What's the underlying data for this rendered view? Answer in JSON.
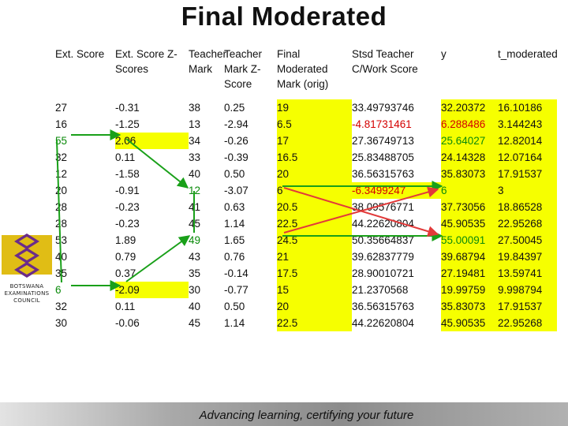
{
  "title": "Final Moderated",
  "footer": "Advancing learning, certifying your future",
  "logo": {
    "lines": [
      "BOTSWANA",
      "EXAMINATIONS",
      "COUNCIL"
    ]
  },
  "colors": {
    "highlight": "#f6ff00",
    "red": "#d40000",
    "green": "#0a8a0a",
    "logo_gold": "#e0bd15",
    "logo_purple": "#6b2c8a"
  },
  "headers": [
    "Ext. Score",
    "Ext. Score Z-Scores",
    "Teacher Mark",
    "Teacher Mark Z-Score",
    "Final Moderated Mark (orig)",
    "Stsd Teacher C/Work Score",
    "y",
    "t_moderated"
  ],
  "rows": [
    [
      "27",
      "-0.31",
      "38",
      "0.25",
      "19",
      "33.49793746",
      "32.20372",
      "16.10186"
    ],
    [
      "16",
      "-1.25",
      "13",
      "-2.94",
      "6.5",
      "-4.81731461",
      "6.288486",
      "3.144243"
    ],
    [
      "55",
      "2.06",
      "34",
      "-0.26",
      "17",
      "27.36749713",
      "25.64027",
      "12.82014"
    ],
    [
      "32",
      "0.11",
      "33",
      "-0.39",
      "16.5",
      "25.83488705",
      "24.14328",
      "12.07164"
    ],
    [
      "12",
      "-1.58",
      "40",
      "0.50",
      "20",
      "36.56315763",
      "35.83073",
      "17.91537"
    ],
    [
      "20",
      "-0.91",
      "12",
      "-3.07",
      "6",
      "-6.3499247",
      "6",
      "3"
    ],
    [
      "28",
      "-0.23",
      "41",
      "0.63",
      "20.5",
      "38.09576771",
      "37.73056",
      "18.86528"
    ],
    [
      "28",
      "-0.23",
      "45",
      "1.14",
      "22.5",
      "44.22620804",
      "45.90535",
      "22.95268"
    ],
    [
      "53",
      "1.89",
      "49",
      "1.65",
      "24.5",
      "50.35664837",
      "55.00091",
      "27.50045"
    ],
    [
      "40",
      "0.79",
      "43",
      "0.76",
      "21",
      "39.62837779",
      "39.68794",
      "19.84397"
    ],
    [
      "35",
      "0.37",
      "35",
      "-0.14",
      "17.5",
      "28.90010721",
      "27.19481",
      "13.59741"
    ],
    [
      "6",
      "-2.09",
      "30",
      "-0.77",
      "15",
      "21.2370568",
      "19.99759",
      "9.998794"
    ],
    [
      "32",
      "0.11",
      "40",
      "0.50",
      "20",
      "36.56315763",
      "35.83073",
      "17.91537"
    ],
    [
      "30",
      "-0.06",
      "45",
      "1.14",
      "22.5",
      "44.22620804",
      "45.90535",
      "22.95268"
    ]
  ],
  "cell_styles": {
    "0": [
      "",
      "",
      "",
      "",
      "hl",
      "",
      "hl",
      "hl"
    ],
    "1": [
      "",
      "",
      "",
      "",
      "hl",
      "red",
      "hlr",
      "hl"
    ],
    "2": [
      "green",
      "hl",
      "",
      "",
      "hl",
      "",
      "hlg",
      "hl"
    ],
    "3": [
      "",
      "",
      "",
      "",
      "hl",
      "",
      "hl",
      "hl"
    ],
    "4": [
      "",
      "",
      "",
      "",
      "hl",
      "",
      "hl",
      "hl"
    ],
    "5": [
      "",
      "",
      "green",
      "",
      "hl",
      "hlr",
      "hlg",
      "hl"
    ],
    "6": [
      "",
      "",
      "",
      "",
      "hl",
      "",
      "hl",
      "hl"
    ],
    "7": [
      "",
      "",
      "",
      "",
      "hl",
      "",
      "hl",
      "hl"
    ],
    "8": [
      "",
      "",
      "green",
      "",
      "hl",
      "",
      "hlg",
      "hl"
    ],
    "9": [
      "",
      "",
      "",
      "",
      "hl",
      "",
      "hl",
      "hl"
    ],
    "10": [
      "",
      "",
      "",
      "",
      "hl",
      "",
      "hl",
      "hl"
    ],
    "11": [
      "green",
      "hl",
      "",
      "",
      "hl",
      "",
      "hl",
      "hl"
    ],
    "12": [
      "",
      "",
      "",
      "",
      "hl",
      "",
      "hl",
      "hl"
    ],
    "13": [
      "",
      "",
      "",
      "",
      "hl",
      "",
      "hl",
      "hl"
    ]
  }
}
